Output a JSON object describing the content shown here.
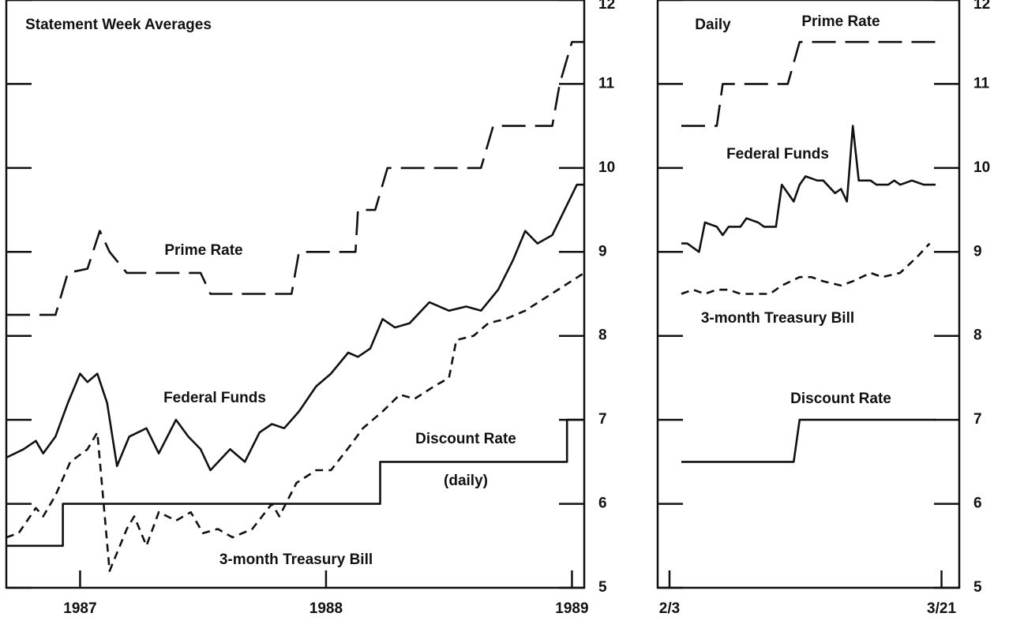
{
  "chart_data": [
    {
      "type": "line",
      "subtitle": "Statement Week Averages",
      "annotations": [
        "(daily)"
      ],
      "xlim": [
        1986.7,
        1989.05
      ],
      "xticks": [
        1987,
        1988,
        1989
      ],
      "ylim": [
        5,
        12
      ],
      "yticks": [
        5,
        6,
        7,
        8,
        9,
        10,
        11,
        12
      ],
      "series": [
        {
          "name": "Prime Rate",
          "color": "#111111",
          "style": "long-dash",
          "x": [
            1986.7,
            1986.9,
            1986.95,
            1987.03,
            1987.08,
            1987.12,
            1987.19,
            1987.49,
            1987.53,
            1987.86,
            1987.89,
            1988.12,
            1988.13,
            1988.2,
            1988.25,
            1988.63,
            1988.68,
            1988.92,
            1988.95,
            1989.0,
            1989.05
          ],
          "values": [
            8.25,
            8.25,
            8.75,
            8.8,
            9.25,
            9.0,
            8.75,
            8.75,
            8.5,
            8.5,
            9.0,
            9.0,
            9.5,
            9.5,
            10.0,
            10.0,
            10.5,
            10.5,
            11.0,
            11.5,
            11.5
          ]
        },
        {
          "name": "Federal Funds",
          "color": "#111111",
          "style": "solid",
          "x": [
            1986.7,
            1986.77,
            1986.82,
            1986.85,
            1986.9,
            1986.95,
            1987.0,
            1987.03,
            1987.07,
            1987.11,
            1987.15,
            1987.2,
            1987.27,
            1987.32,
            1987.39,
            1987.44,
            1987.49,
            1987.53,
            1987.61,
            1987.67,
            1987.73,
            1987.78,
            1987.83,
            1987.89,
            1987.96,
            1988.02,
            1988.09,
            1988.13,
            1988.18,
            1988.23,
            1988.28,
            1988.34,
            1988.42,
            1988.5,
            1988.57,
            1988.63,
            1988.7,
            1988.76,
            1988.81,
            1988.86,
            1988.92,
            1988.97,
            1989.02,
            1989.05
          ],
          "values": [
            6.55,
            6.65,
            6.75,
            6.6,
            6.8,
            7.2,
            7.55,
            7.45,
            7.55,
            7.2,
            6.45,
            6.8,
            6.9,
            6.6,
            7.0,
            6.8,
            6.65,
            6.4,
            6.65,
            6.5,
            6.85,
            6.95,
            6.9,
            7.1,
            7.4,
            7.55,
            7.8,
            7.75,
            7.85,
            8.2,
            8.1,
            8.15,
            8.4,
            8.3,
            8.35,
            8.3,
            8.55,
            8.9,
            9.25,
            9.1,
            9.2,
            9.5,
            9.8,
            9.8
          ]
        },
        {
          "name": "Discount Rate",
          "color": "#111111",
          "style": "solid",
          "x": [
            1986.7,
            1986.93,
            1986.93,
            1988.22,
            1988.22,
            1988.98,
            1988.98,
            1989.05
          ],
          "values": [
            5.5,
            5.5,
            6.0,
            6.0,
            6.5,
            6.5,
            7.0,
            7.0
          ]
        },
        {
          "name": "3-month Treasury Bill",
          "color": "#111111",
          "style": "short-dash",
          "x": [
            1986.7,
            1986.75,
            1986.82,
            1986.85,
            1986.9,
            1986.96,
            1987.03,
            1987.07,
            1987.12,
            1987.19,
            1987.22,
            1987.27,
            1987.32,
            1987.39,
            1987.45,
            1987.5,
            1987.56,
            1987.62,
            1987.7,
            1987.78,
            1987.81,
            1987.88,
            1987.96,
            1988.02,
            1988.1,
            1988.15,
            1988.23,
            1988.3,
            1988.36,
            1988.44,
            1988.5,
            1988.53,
            1988.6,
            1988.66,
            1988.73,
            1988.81,
            1988.89,
            1988.97,
            1989.05
          ],
          "values": [
            5.6,
            5.65,
            5.95,
            5.85,
            6.1,
            6.5,
            6.65,
            6.85,
            5.2,
            5.7,
            5.85,
            5.5,
            5.9,
            5.8,
            5.9,
            5.65,
            5.7,
            5.6,
            5.7,
            6.0,
            5.85,
            6.25,
            6.4,
            6.4,
            6.7,
            6.9,
            7.1,
            7.3,
            7.25,
            7.4,
            7.5,
            7.95,
            8.0,
            8.15,
            8.2,
            8.3,
            8.45,
            8.6,
            8.75
          ]
        }
      ]
    },
    {
      "type": "line",
      "subtitle": "Daily",
      "annotations": [],
      "xlim": [
        -2,
        49
      ],
      "xticks": [
        {
          "value": 0,
          "label": "2/3"
        },
        {
          "value": 46,
          "label": "3/21"
        }
      ],
      "ylim": [
        5,
        12
      ],
      "yticks": [
        5,
        6,
        7,
        8,
        9,
        10,
        11,
        12
      ],
      "series": [
        {
          "name": "Prime Rate",
          "color": "#111111",
          "style": "long-dash",
          "x": [
            2,
            8,
            9,
            20,
            22,
            45
          ],
          "values": [
            10.5,
            10.5,
            11.0,
            11.0,
            11.5,
            11.5
          ]
        },
        {
          "name": "Federal Funds",
          "color": "#111111",
          "style": "solid",
          "x": [
            2,
            3,
            5,
            6,
            8,
            9,
            10,
            12,
            13,
            15,
            16,
            18,
            19,
            21,
            22,
            23,
            25,
            26,
            28,
            29,
            30,
            31,
            32,
            34,
            35,
            37,
            38,
            39,
            41,
            43,
            45
          ],
          "values": [
            9.1,
            9.1,
            9.0,
            9.35,
            9.3,
            9.2,
            9.3,
            9.3,
            9.4,
            9.35,
            9.3,
            9.3,
            9.8,
            9.6,
            9.8,
            9.9,
            9.85,
            9.85,
            9.7,
            9.75,
            9.6,
            10.5,
            9.85,
            9.85,
            9.8,
            9.8,
            9.85,
            9.8,
            9.85,
            9.8,
            9.8
          ]
        },
        {
          "name": "Discount Rate",
          "color": "#111111",
          "style": "solid",
          "x": [
            2,
            21,
            22,
            45
          ],
          "values": [
            6.5,
            6.5,
            7.0,
            7.0
          ]
        },
        {
          "name": "3-month Treasury Bill",
          "color": "#111111",
          "style": "short-dash",
          "x": [
            2,
            4,
            6,
            8,
            10,
            12,
            15,
            17,
            19,
            22,
            24,
            26,
            29,
            31,
            34,
            36,
            39,
            42,
            44
          ],
          "values": [
            8.5,
            8.55,
            8.5,
            8.55,
            8.55,
            8.5,
            8.5,
            8.5,
            8.6,
            8.7,
            8.7,
            8.65,
            8.6,
            8.65,
            8.75,
            8.7,
            8.75,
            8.95,
            9.1
          ]
        }
      ]
    }
  ]
}
